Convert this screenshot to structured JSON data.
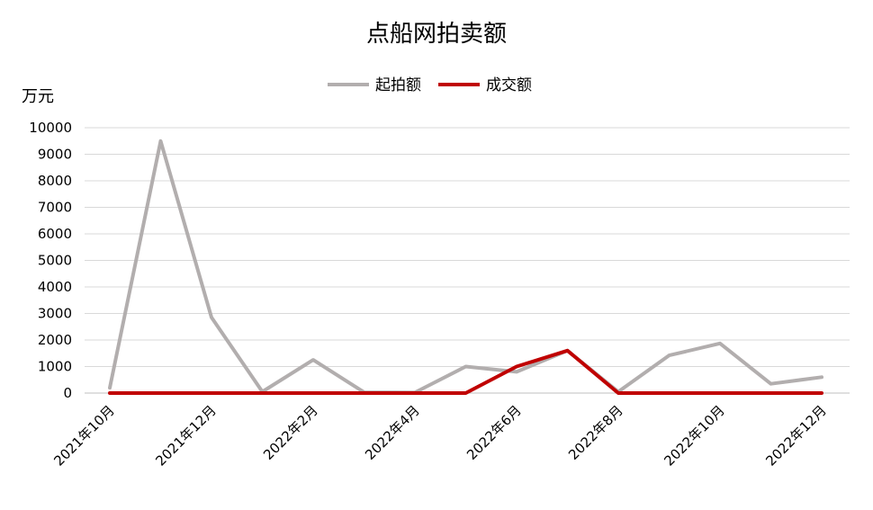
{
  "chart_data": {
    "type": "line",
    "title": "点船网拍卖额",
    "unit": "万元",
    "x": [
      "2021年10月",
      "2021年11月",
      "2021年12月",
      "2022年1月",
      "2022年2月",
      "2022年3月",
      "2022年4月",
      "2022年5月",
      "2022年6月",
      "2022年7月",
      "2022年8月",
      "2022年9月",
      "2022年10月",
      "2022年11月",
      "2022年12月"
    ],
    "x_tick_labels": [
      "2021年10月",
      "2021年12月",
      "2022年2月",
      "2022年4月",
      "2022年6月",
      "2022年8月",
      "2022年10月",
      "2022年12月"
    ],
    "y_ticks": [
      "0",
      "1000",
      "2000",
      "3000",
      "4000",
      "5000",
      "6000",
      "7000",
      "8000",
      "9000",
      "10000"
    ],
    "ylim": [
      0,
      10000
    ],
    "grid": true,
    "legend_position": "top",
    "series": [
      {
        "name": "起拍额",
        "color": "#b2aeae",
        "values": [
          200,
          9500,
          2850,
          50,
          1250,
          30,
          20,
          1000,
          800,
          1600,
          50,
          1420,
          1870,
          350,
          600
        ]
      },
      {
        "name": "成交额",
        "color": "#c00000",
        "values": [
          0,
          0,
          0,
          0,
          0,
          0,
          0,
          0,
          1000,
          1600,
          0,
          0,
          0,
          0,
          0
        ]
      }
    ]
  }
}
